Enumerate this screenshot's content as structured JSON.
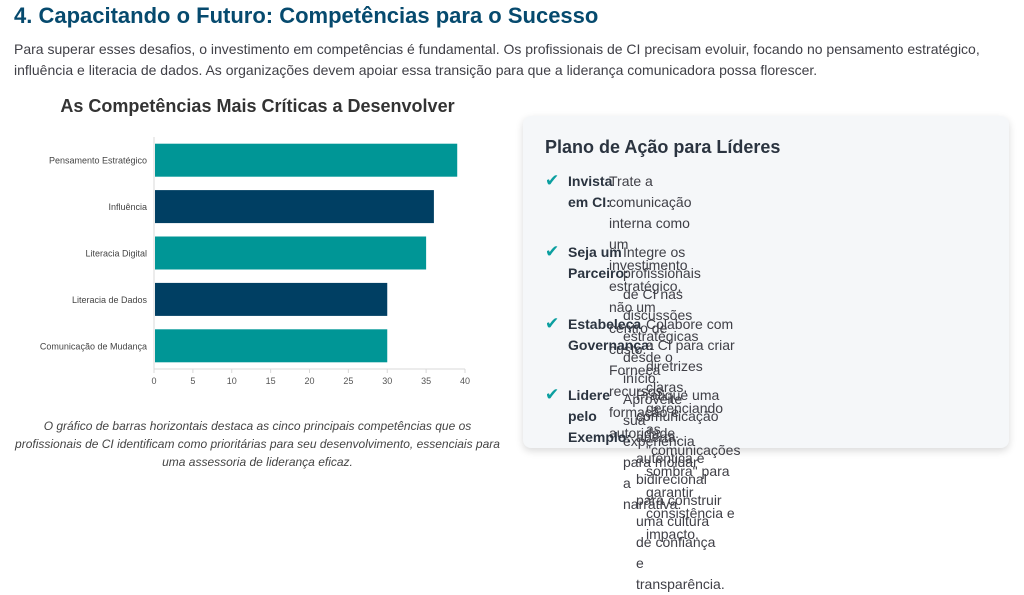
{
  "section_title": "4. Capacitando o Futuro: Competências para o Sucesso",
  "intro": "Para superar esses desafios, o investimento em competências é fundamental. Os profissionais de CI precisam evoluir, focando no pensamento estratégico, influência e literacia de dados. As organizações devem apoiar essa transição para que a liderança comunicadora possa florescer.",
  "chart_data": {
    "type": "bar",
    "orientation": "horizontal",
    "title": "As Competências Mais Críticas a Desenvolver",
    "categories": [
      "Pensamento Estratégico",
      "Influência",
      "Literacia Digital",
      "Literacia de Dados",
      "Comunicação de Mudança"
    ],
    "values": [
      39,
      36,
      35,
      30,
      30
    ],
    "bar_colors": [
      "#009696",
      "#003f63",
      "#009696",
      "#003f63",
      "#009696"
    ],
    "xlim": [
      0,
      40
    ],
    "xticks": [
      0,
      5,
      10,
      15,
      20,
      25,
      30,
      35,
      40
    ],
    "xlabel": "",
    "ylabel": "",
    "grid": false,
    "legend": "none"
  },
  "caption": "O gráfico de barras horizontais destaca as cinco principais competências que os profissionais de CI identificam como prioritárias para seu desenvolvimento, essenciais para uma assessoria de liderança eficaz.",
  "action_plan": {
    "title": "Plano de Ação para Líderes",
    "check_color": "#0b9fa0",
    "items": [
      {
        "label_lines": [
          "Invista",
          "em CI:"
        ],
        "text_lines": [
          "Trate a comunicação interna como um investimento estratégico,",
          "não um centro de custo. Forneça recursos, formação e",
          "autoridade."
        ]
      },
      {
        "label_lines": [
          "Seja um",
          "Parceiro:"
        ],
        "text_lines": [
          "Integre os profissionais de CI nas discussões estratégicas",
          "desde o início. Aproveite sua experiência para moldar a",
          "narrativa."
        ]
      },
      {
        "label_lines": [
          "Estabeleça",
          "Governança:"
        ],
        "text_lines": [
          "Colabore com a CI para criar diretrizes claras, gerenciando",
          "as \"comunicações sombra\" para garantir consistência e",
          "impacto."
        ]
      },
      {
        "label_lines": [
          "Lidere pelo",
          "Exemplo:"
        ],
        "text_lines": [
          "Pratique uma comunicação aberta, autêntica e bidirecional",
          "para construir uma cultura de confiança e transparência."
        ]
      }
    ]
  }
}
